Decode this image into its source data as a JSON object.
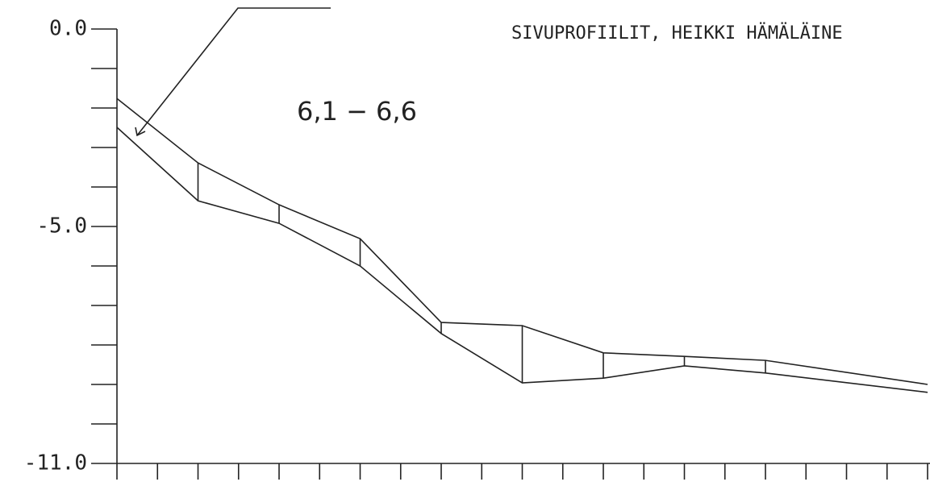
{
  "chart_data": {
    "type": "line",
    "title": "SIVUPROFIILIT, HEIKKI HÄMÄLÄINE",
    "annotation": "6,1 − 6,6",
    "x": [
      0,
      2,
      4,
      6,
      8,
      10,
      12,
      14,
      16,
      20
    ],
    "series": [
      {
        "color": "#222222",
        "values": [
          -1.76,
          -3.39,
          -4.45,
          -5.31,
          -7.43,
          -7.51,
          -8.2,
          -8.29,
          -8.39,
          -9.0
        ]
      },
      {
        "color": "#222222",
        "values": [
          -2.49,
          -4.35,
          -4.92,
          -6.0,
          -7.71,
          -8.96,
          -8.84,
          -8.53,
          -8.71,
          -9.2
        ]
      }
    ],
    "xlim": [
      0,
      20
    ],
    "xminorticks": [
      0,
      1,
      2,
      3,
      4,
      5,
      6,
      7,
      8,
      9,
      10,
      11,
      12,
      13,
      14,
      15,
      16,
      17,
      18,
      19,
      20
    ],
    "ylim": [
      -11,
      0
    ],
    "yticks": [
      {
        "value": 0,
        "label": "0.0"
      },
      {
        "value": -5,
        "label": "-5.0"
      },
      {
        "value": -11,
        "label": "-11.0"
      }
    ],
    "yminorticks": [
      -1,
      -2,
      -3,
      -4,
      -6,
      -7,
      -8,
      -9,
      -10
    ]
  }
}
